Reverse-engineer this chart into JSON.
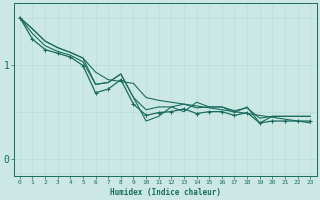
{
  "title": "",
  "xlabel": "Humidex (Indice chaleur)",
  "bg_color": "#cce8e4",
  "line_color": "#1a6b5e",
  "grid_color_v": "#aad4ce",
  "grid_color_h": "#aad4ce",
  "xlim": [
    -0.5,
    23.5
  ],
  "ylim": [
    -0.18,
    1.65
  ],
  "yticks": [
    0,
    1
  ],
  "ytick_labels": [
    "0",
    "1"
  ],
  "xticks": [
    0,
    1,
    2,
    3,
    4,
    5,
    6,
    7,
    8,
    9,
    10,
    11,
    12,
    13,
    14,
    15,
    16,
    17,
    18,
    19,
    20,
    21,
    22,
    23
  ],
  "lines": [
    {
      "x": [
        0,
        1,
        2,
        3,
        4,
        5,
        6,
        7,
        8,
        9,
        10,
        11,
        12,
        13,
        14,
        15,
        16,
        17,
        18,
        19,
        20,
        21,
        22,
        23
      ],
      "y": [
        1.5,
        1.38,
        1.25,
        1.18,
        1.13,
        1.07,
        0.92,
        0.84,
        0.82,
        0.8,
        0.65,
        0.62,
        0.6,
        0.58,
        0.56,
        0.54,
        0.52,
        0.5,
        0.48,
        0.46,
        0.44,
        0.42,
        0.4,
        0.38
      ],
      "marker": false,
      "lw": 0.8
    },
    {
      "x": [
        0,
        1,
        2,
        3,
        4,
        5,
        6,
        7,
        8,
        9,
        10,
        11,
        12,
        13,
        14,
        15,
        16,
        17,
        18,
        19,
        20,
        21,
        22,
        23
      ],
      "y": [
        1.5,
        1.33,
        1.2,
        1.14,
        1.1,
        1.03,
        0.79,
        0.81,
        0.9,
        0.65,
        0.52,
        0.55,
        0.55,
        0.58,
        0.54,
        0.55,
        0.55,
        0.51,
        0.54,
        0.43,
        0.45,
        0.45,
        0.45,
        0.45
      ],
      "marker": false,
      "lw": 0.8
    },
    {
      "x": [
        0,
        1,
        2,
        3,
        4,
        5,
        6,
        7,
        8,
        9,
        10,
        11,
        12,
        13,
        14,
        15,
        16,
        17,
        18,
        19,
        20,
        21,
        22,
        23
      ],
      "y": [
        1.5,
        1.27,
        1.16,
        1.12,
        1.08,
        0.99,
        0.7,
        0.74,
        0.84,
        0.58,
        0.46,
        0.49,
        0.5,
        0.53,
        0.48,
        0.5,
        0.5,
        0.46,
        0.49,
        0.38,
        0.4,
        0.4,
        0.4,
        0.4
      ],
      "marker": true,
      "lw": 0.9
    },
    {
      "x": [
        0,
        1,
        2,
        3,
        4,
        5,
        6,
        7,
        8,
        9,
        10,
        11,
        12,
        13,
        14,
        15,
        16,
        17,
        18,
        19,
        20,
        21,
        22,
        23
      ],
      "y": [
        1.5,
        1.38,
        1.25,
        1.18,
        1.13,
        1.07,
        0.79,
        0.81,
        0.9,
        0.65,
        0.4,
        0.45,
        0.55,
        0.5,
        0.6,
        0.55,
        0.55,
        0.49,
        0.55,
        0.38,
        0.45,
        0.45,
        0.45,
        0.45
      ],
      "marker": false,
      "lw": 0.8
    }
  ]
}
